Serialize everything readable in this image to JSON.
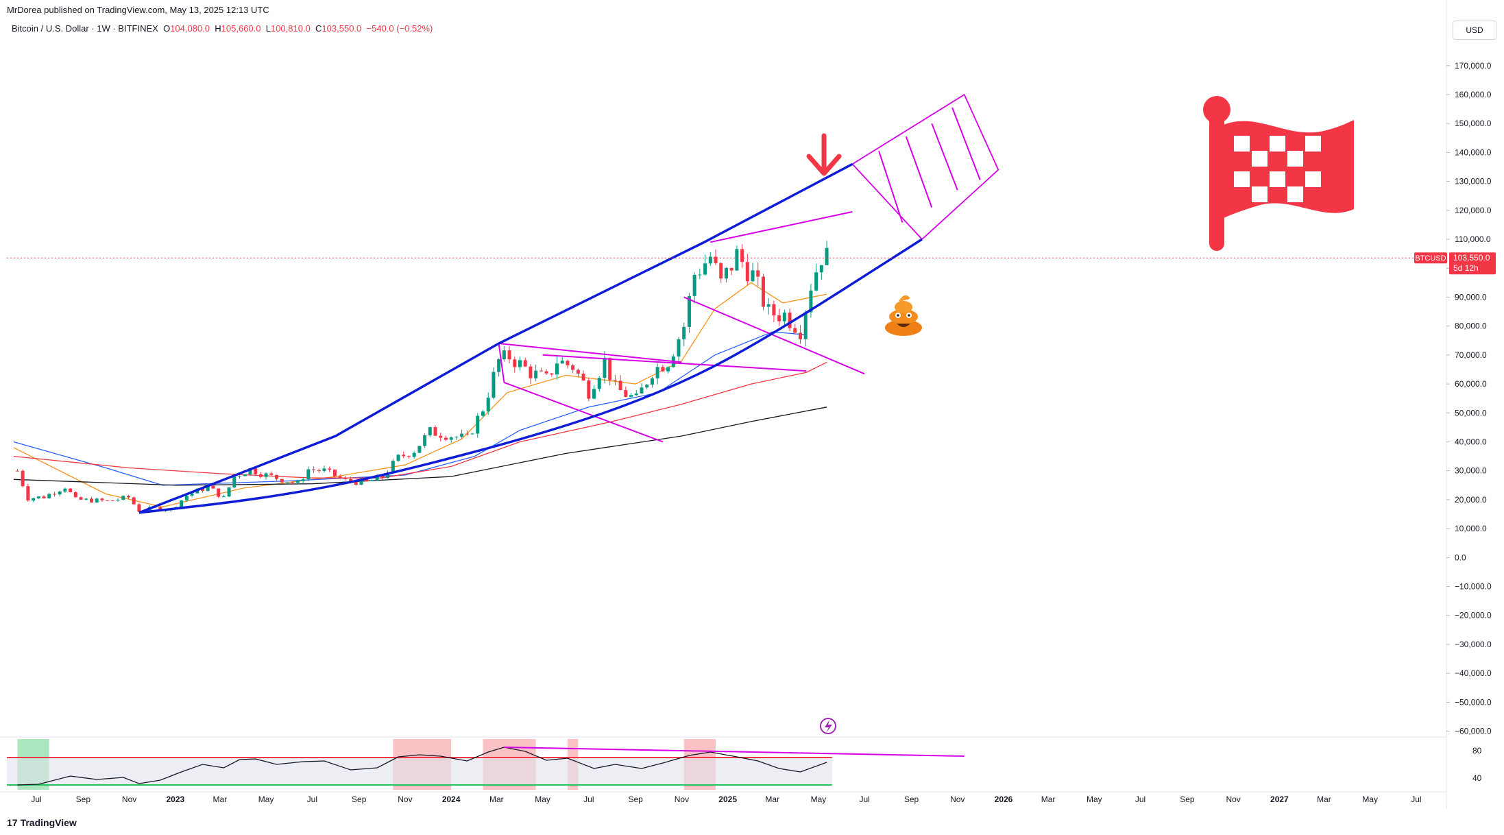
{
  "header": {
    "published": "MrDorea published on TradingView.com, May 13, 2025 12:13 UTC"
  },
  "legend": {
    "symbol": "Bitcoin / U.S. Dollar · 1W · BITFINEX",
    "o_label": "O",
    "o_value": "104,080.0",
    "h_label": "H",
    "h_value": "105,660.0",
    "l_label": "L",
    "l_value": "100,810.0",
    "c_label": "C",
    "c_value": "103,550.0",
    "change": "−540.0 (−0.52%)"
  },
  "currency_button": "USD",
  "price_badge": {
    "symbol": "BTCUSD",
    "price": "103,550.0",
    "countdown": "5d 12h"
  },
  "footer": {
    "brand": "TradingView",
    "logo_glyph": "17"
  },
  "colors": {
    "up": "#089981",
    "down": "#f23645",
    "channel": "#0f1ed6",
    "magenta": "#d600e6",
    "ma_orange": "#f7931a",
    "ma_blue": "#2962ff",
    "ma_red": "#f23645",
    "ma_black": "#131722"
  },
  "chart_data": {
    "type": "candlestick",
    "interval": "1W",
    "y_axis": {
      "range": [
        -62000,
        178000
      ],
      "tick_labels": [
        "170,000.0",
        "160,000.0",
        "150,000.0",
        "140,000.0",
        "130,000.0",
        "120,000.0",
        "110,000.0",
        "100,000.0",
        "90,000.0",
        "80,000.0",
        "70,000.0",
        "60,000.0",
        "50,000.0",
        "40,000.0",
        "30,000.0",
        "20,000.0",
        "10,000.0",
        "0.0",
        "−10,000.0",
        "−20,000.0",
        "−30,000.0",
        "−40,000.0",
        "−50,000.0",
        "−60,000.0"
      ],
      "tick_values": [
        170000,
        160000,
        150000,
        140000,
        130000,
        120000,
        110000,
        100000,
        90000,
        80000,
        70000,
        60000,
        50000,
        40000,
        30000,
        20000,
        10000,
        0,
        -10000,
        -20000,
        -30000,
        -40000,
        -50000,
        -60000
      ]
    },
    "x_axis": {
      "labels": [
        "Jul",
        "Sep",
        "Nov",
        "2023",
        "Mar",
        "May",
        "Jul",
        "Sep",
        "Nov",
        "2024",
        "Mar",
        "May",
        "Jul",
        "Sep",
        "Nov",
        "2025",
        "Mar",
        "May",
        "Jul",
        "Sep",
        "Nov",
        "2026",
        "Mar",
        "May",
        "Jul",
        "Sep",
        "Nov",
        "2027",
        "Mar",
        "May",
        "Jul"
      ],
      "bold": [
        "2023",
        "2024",
        "2025",
        "2026",
        "2027"
      ],
      "label_dates": [
        "2022-07-01",
        "2022-09-01",
        "2022-11-01",
        "2023-01-01",
        "2023-03-01",
        "2023-05-01",
        "2023-07-01",
        "2023-09-01",
        "2023-11-01",
        "2024-01-01",
        "2024-03-01",
        "2024-05-01",
        "2024-07-01",
        "2024-09-01",
        "2024-11-01",
        "2025-01-01",
        "2025-03-01",
        "2025-05-01",
        "2025-07-01",
        "2025-09-01",
        "2025-11-01",
        "2026-01-01",
        "2026-03-01",
        "2026-05-01",
        "2026-07-01",
        "2026-09-01",
        "2026-11-01",
        "2027-01-01",
        "2027-03-01",
        "2027-05-01",
        "2027-07-01"
      ]
    },
    "candles_anchor": [
      [
        "2022-06-06",
        30000
      ],
      [
        "2022-06-20",
        20500
      ],
      [
        "2022-07-11",
        21000
      ],
      [
        "2022-08-08",
        24500
      ],
      [
        "2022-08-22",
        20000
      ],
      [
        "2022-09-12",
        19800
      ],
      [
        "2022-10-03",
        19500
      ],
      [
        "2022-10-31",
        20800
      ],
      [
        "2022-11-14",
        16200
      ],
      [
        "2022-12-05",
        17000
      ],
      [
        "2022-12-26",
        16600
      ],
      [
        "2023-01-16",
        21500
      ],
      [
        "2023-02-13",
        24500
      ],
      [
        "2023-03-06",
        20500
      ],
      [
        "2023-03-20",
        28000
      ],
      [
        "2023-04-10",
        30500
      ],
      [
        "2023-05-01",
        28500
      ],
      [
        "2023-05-22",
        27000
      ],
      [
        "2023-06-12",
        25500
      ],
      [
        "2023-06-26",
        30500
      ],
      [
        "2023-07-17",
        30000
      ],
      [
        "2023-08-14",
        26500
      ],
      [
        "2023-09-11",
        26000
      ],
      [
        "2023-10-02",
        27800
      ],
      [
        "2023-10-23",
        34500
      ],
      [
        "2023-11-13",
        37000
      ],
      [
        "2023-12-04",
        43500
      ],
      [
        "2023-12-25",
        42500
      ],
      [
        "2024-01-22",
        41000
      ],
      [
        "2024-02-12",
        51500
      ],
      [
        "2024-03-04",
        68000
      ],
      [
        "2024-03-18",
        69500
      ],
      [
        "2024-04-15",
        64000
      ],
      [
        "2024-05-06",
        61500
      ],
      [
        "2024-05-20",
        68000
      ],
      [
        "2024-06-10",
        66000
      ],
      [
        "2024-07-01",
        57500
      ],
      [
        "2024-07-22",
        68000
      ],
      [
        "2024-08-05",
        58500
      ],
      [
        "2024-09-02",
        54500
      ],
      [
        "2024-09-23",
        64500
      ],
      [
        "2024-10-14",
        68000
      ],
      [
        "2024-11-04",
        80000
      ],
      [
        "2024-11-18",
        98000
      ],
      [
        "2024-12-09",
        104000
      ],
      [
        "2024-12-23",
        94500
      ],
      [
        "2025-01-13",
        104500
      ],
      [
        "2025-02-03",
        97500
      ],
      [
        "2025-02-24",
        84500
      ],
      [
        "2025-03-17",
        84000
      ],
      [
        "2025-04-07",
        79000
      ],
      [
        "2025-04-21",
        94500
      ],
      [
        "2025-05-05",
        104500
      ],
      [
        "2025-05-12",
        103550
      ]
    ],
    "moving_averages": [
      {
        "color": "orange",
        "points": [
          [
            "2022-06-01",
            38000
          ],
          [
            "2022-10-01",
            22000
          ],
          [
            "2022-12-15",
            17500
          ],
          [
            "2023-04-01",
            24000
          ],
          [
            "2023-08-01",
            28000
          ],
          [
            "2023-11-01",
            32000
          ],
          [
            "2024-01-15",
            41000
          ],
          [
            "2024-03-15",
            57000
          ],
          [
            "2024-06-01",
            63000
          ],
          [
            "2024-09-01",
            60000
          ],
          [
            "2024-11-01",
            68000
          ],
          [
            "2024-12-15",
            86000
          ],
          [
            "2025-02-01",
            95000
          ],
          [
            "2025-03-15",
            88000
          ],
          [
            "2025-05-12",
            91000
          ]
        ]
      },
      {
        "color": "blue",
        "points": [
          [
            "2022-06-01",
            40000
          ],
          [
            "2022-10-01",
            31000
          ],
          [
            "2022-12-15",
            25000
          ],
          [
            "2023-06-01",
            26500
          ],
          [
            "2023-11-01",
            28500
          ],
          [
            "2024-02-01",
            35000
          ],
          [
            "2024-04-01",
            44000
          ],
          [
            "2024-07-01",
            52000
          ],
          [
            "2024-10-01",
            57000
          ],
          [
            "2024-12-15",
            70000
          ],
          [
            "2025-03-01",
            78000
          ],
          [
            "2025-04-15",
            77000
          ]
        ]
      },
      {
        "color": "red",
        "points": [
          [
            "2022-06-01",
            35000
          ],
          [
            "2022-11-01",
            31000
          ],
          [
            "2023-03-01",
            29000
          ],
          [
            "2023-07-01",
            27500
          ],
          [
            "2023-10-01",
            27500
          ],
          [
            "2024-01-01",
            31500
          ],
          [
            "2024-04-01",
            40000
          ],
          [
            "2024-08-01",
            47000
          ],
          [
            "2024-11-01",
            53000
          ],
          [
            "2025-02-01",
            60000
          ],
          [
            "2025-04-15",
            64000
          ],
          [
            "2025-05-12",
            67500
          ]
        ]
      },
      {
        "color": "black",
        "points": [
          [
            "2022-06-01",
            27000
          ],
          [
            "2023-01-01",
            25000
          ],
          [
            "2023-07-01",
            25500
          ],
          [
            "2024-01-01",
            28000
          ],
          [
            "2024-06-01",
            36000
          ],
          [
            "2024-11-01",
            42000
          ],
          [
            "2025-02-01",
            47000
          ],
          [
            "2025-05-12",
            52000
          ]
        ]
      }
    ],
    "channel": {
      "upper": [
        [
          "2022-11-14",
          15500
        ],
        [
          "2023-08-01",
          42000
        ],
        [
          "2024-03-04",
          74000
        ],
        [
          "2024-12-01",
          109000
        ],
        [
          "2025-06-15",
          136000
        ]
      ],
      "lower": [
        [
          "2022-11-14",
          15500
        ],
        [
          "2023-05-01",
          20500
        ],
        [
          "2023-10-01",
          28000
        ],
        [
          "2024-06-01",
          45000
        ],
        [
          "2024-11-01",
          60000
        ],
        [
          "2025-03-01",
          77000
        ],
        [
          "2025-09-15",
          110000
        ]
      ]
    },
    "rsi": {
      "range": [
        20,
        100
      ],
      "tick_labels": [
        "80",
        "40"
      ],
      "tick_values": [
        80,
        40
      ],
      "overbought": 70,
      "oversold": 30,
      "points": [
        [
          "2022-06-06",
          30
        ],
        [
          "2022-07-04",
          31
        ],
        [
          "2022-08-15",
          43
        ],
        [
          "2022-09-19",
          38
        ],
        [
          "2022-10-24",
          41
        ],
        [
          "2022-11-14",
          32
        ],
        [
          "2022-12-12",
          37
        ],
        [
          "2023-01-09",
          49
        ],
        [
          "2023-02-06",
          60
        ],
        [
          "2023-03-06",
          55
        ],
        [
          "2023-03-27",
          67
        ],
        [
          "2023-04-17",
          68
        ],
        [
          "2023-05-15",
          60
        ],
        [
          "2023-06-19",
          64
        ],
        [
          "2023-07-17",
          65
        ],
        [
          "2023-08-21",
          52
        ],
        [
          "2023-09-25",
          55
        ],
        [
          "2023-10-23",
          71
        ],
        [
          "2023-11-20",
          74
        ],
        [
          "2023-12-18",
          72
        ],
        [
          "2024-01-22",
          65
        ],
        [
          "2024-02-19",
          78
        ],
        [
          "2024-03-11",
          85
        ],
        [
          "2024-04-08",
          79
        ],
        [
          "2024-05-06",
          66
        ],
        [
          "2024-06-03",
          69
        ],
        [
          "2024-07-08",
          54
        ],
        [
          "2024-08-05",
          60
        ],
        [
          "2024-09-09",
          54
        ],
        [
          "2024-10-07",
          62
        ],
        [
          "2024-11-11",
          73
        ],
        [
          "2024-12-09",
          78
        ],
        [
          "2025-01-13",
          71
        ],
        [
          "2025-02-10",
          65
        ],
        [
          "2025-03-10",
          54
        ],
        [
          "2025-04-07",
          49
        ],
        [
          "2025-05-12",
          63
        ]
      ]
    }
  }
}
